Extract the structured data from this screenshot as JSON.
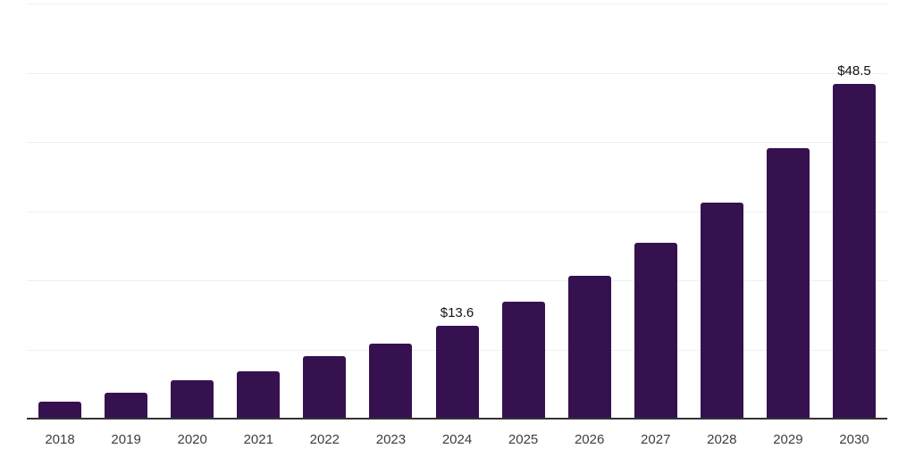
{
  "chart_data": {
    "type": "bar",
    "categories": [
      "2018",
      "2019",
      "2020",
      "2021",
      "2022",
      "2023",
      "2024",
      "2025",
      "2026",
      "2027",
      "2028",
      "2029",
      "2030"
    ],
    "values": [
      2.6,
      3.9,
      5.7,
      7.0,
      9.2,
      11.0,
      13.6,
      17.0,
      20.8,
      25.5,
      31.3,
      39.2,
      48.5
    ],
    "data_labels": [
      "",
      "",
      "",
      "",
      "",
      "",
      "$13.6",
      "",
      "",
      "",
      "",
      "",
      "$48.5"
    ],
    "title": "",
    "xlabel": "",
    "ylabel": "",
    "ylim": [
      0,
      60
    ],
    "gridline_values": [
      10,
      20,
      30,
      40,
      50,
      60
    ],
    "grid": "horizontal",
    "legend_position": "none"
  },
  "colors": {
    "background": "#ffffff",
    "bar": "#36114F",
    "axis": "#333333",
    "gridline": "#efefef",
    "tick_label": "#3d3d3d",
    "data_label": "#111111"
  }
}
